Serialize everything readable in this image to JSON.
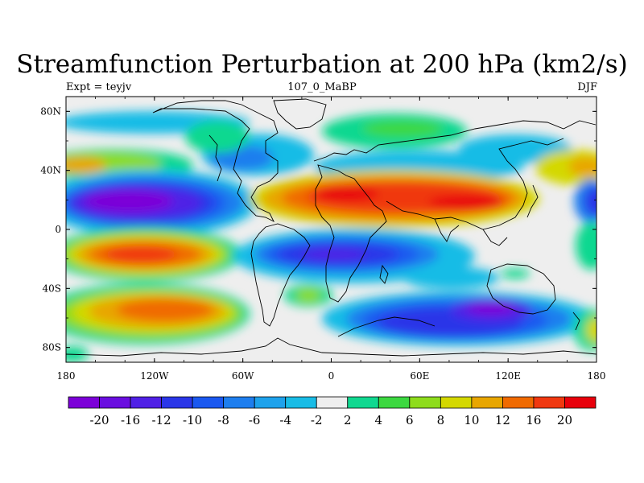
{
  "title": "Streamfunction Perturbation at 200 hPa (km2/s)",
  "left_label": "Expt = teyjv",
  "center_label": "107_0_MaBP",
  "right_label": "DJF",
  "lon_ticks": [
    "180",
    "120W",
    "60W",
    "0",
    "60E",
    "120E",
    "180"
  ],
  "lat_ticks": [
    "80N",
    "40N",
    "0",
    "40S",
    "80S"
  ],
  "colorbar": {
    "labels": [
      "-20",
      "-16",
      "-12",
      "-10",
      "-8",
      "-6",
      "-4",
      "-2",
      "2",
      "4",
      "6",
      "8",
      "10",
      "12",
      "16",
      "20"
    ],
    "colors": [
      "#7c00d8",
      "#6a0ee0",
      "#5020e6",
      "#2a36e8",
      "#1a58f0",
      "#1e7eee",
      "#1ea2ec",
      "#18bce6",
      "#eeeeee",
      "#10d890",
      "#3cd840",
      "#8edc1c",
      "#d4d800",
      "#e8a600",
      "#f06a00",
      "#f03810",
      "#e8000c"
    ]
  }
}
